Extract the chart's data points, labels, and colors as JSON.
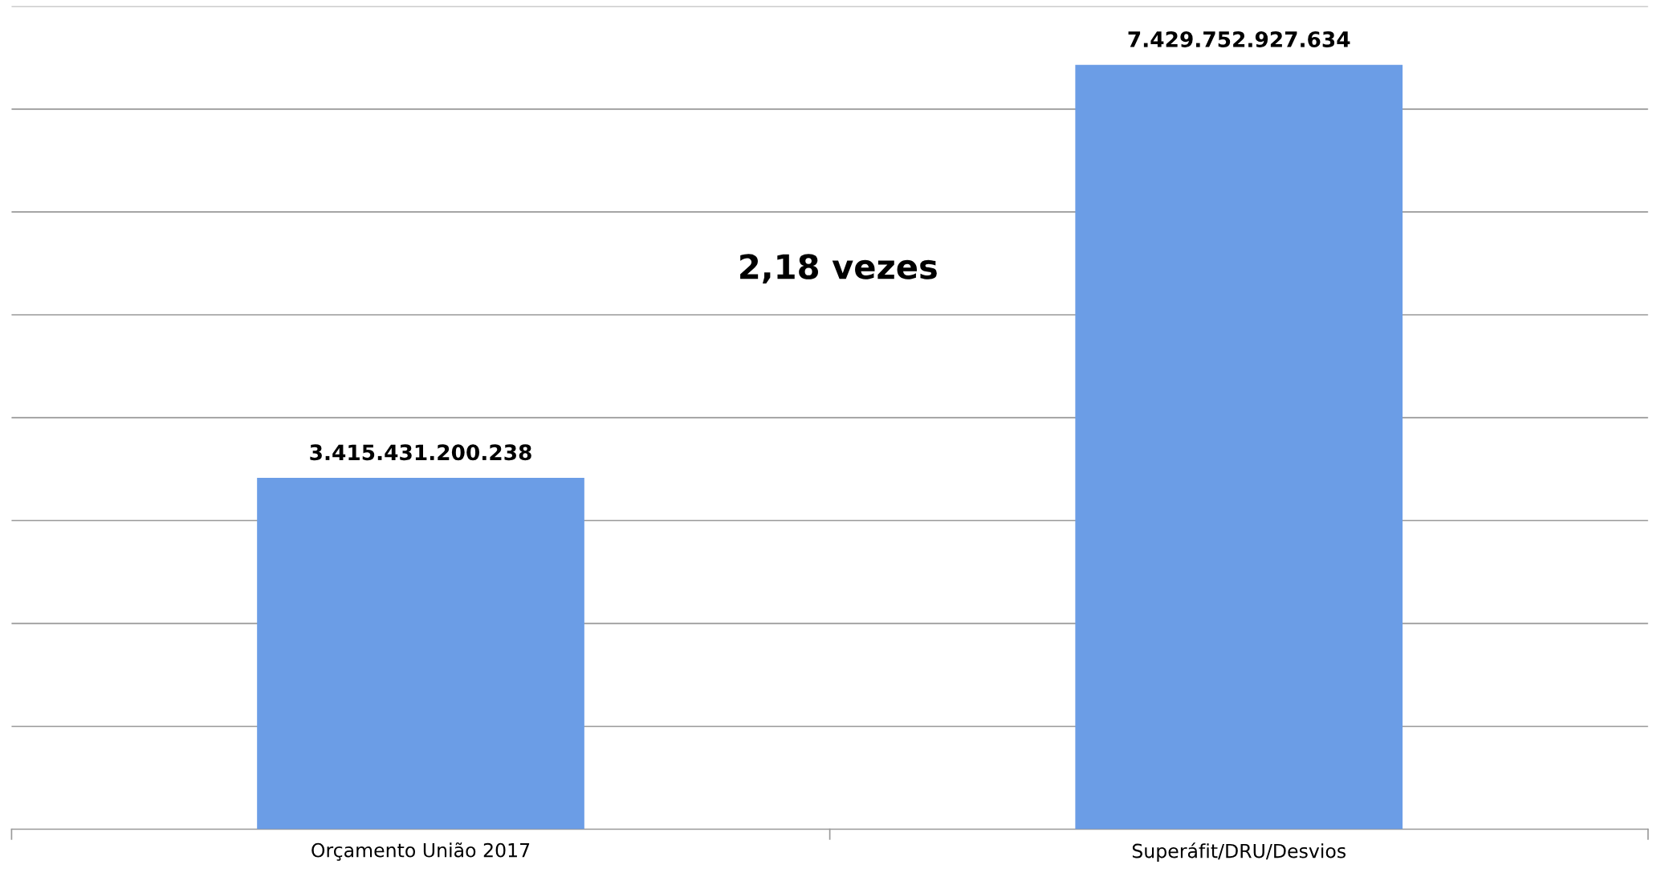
{
  "chart_data": {
    "type": "bar",
    "categories": [
      "Orçamento União 2017",
      "Superáfit/DRU/Desvios"
    ],
    "values": [
      3415431200238,
      7429752927634
    ],
    "value_labels": [
      "3.415.431.200.238",
      "7.429.752.927.634"
    ],
    "color": "#6b9de6",
    "ylim": [
      0,
      8000000000000
    ],
    "yticks": [
      {
        "value": 0,
        "label": null
      },
      {
        "value": 1000000000000,
        "label": null
      },
      {
        "value": 2000000000000,
        "label": null
      },
      {
        "value": 3000000000000,
        "label": null
      },
      {
        "value": 4000000000000,
        "label": null
      },
      {
        "value": 5000000000000,
        "label": null
      },
      {
        "value": 6000000000000,
        "label": null
      },
      {
        "value": 7000000000000,
        "label": null
      },
      {
        "value": 8000000000000,
        "label": null
      }
    ],
    "tick_labels": "x",
    "grid": "y",
    "annotations": [
      "2,18 vezes"
    ]
  }
}
